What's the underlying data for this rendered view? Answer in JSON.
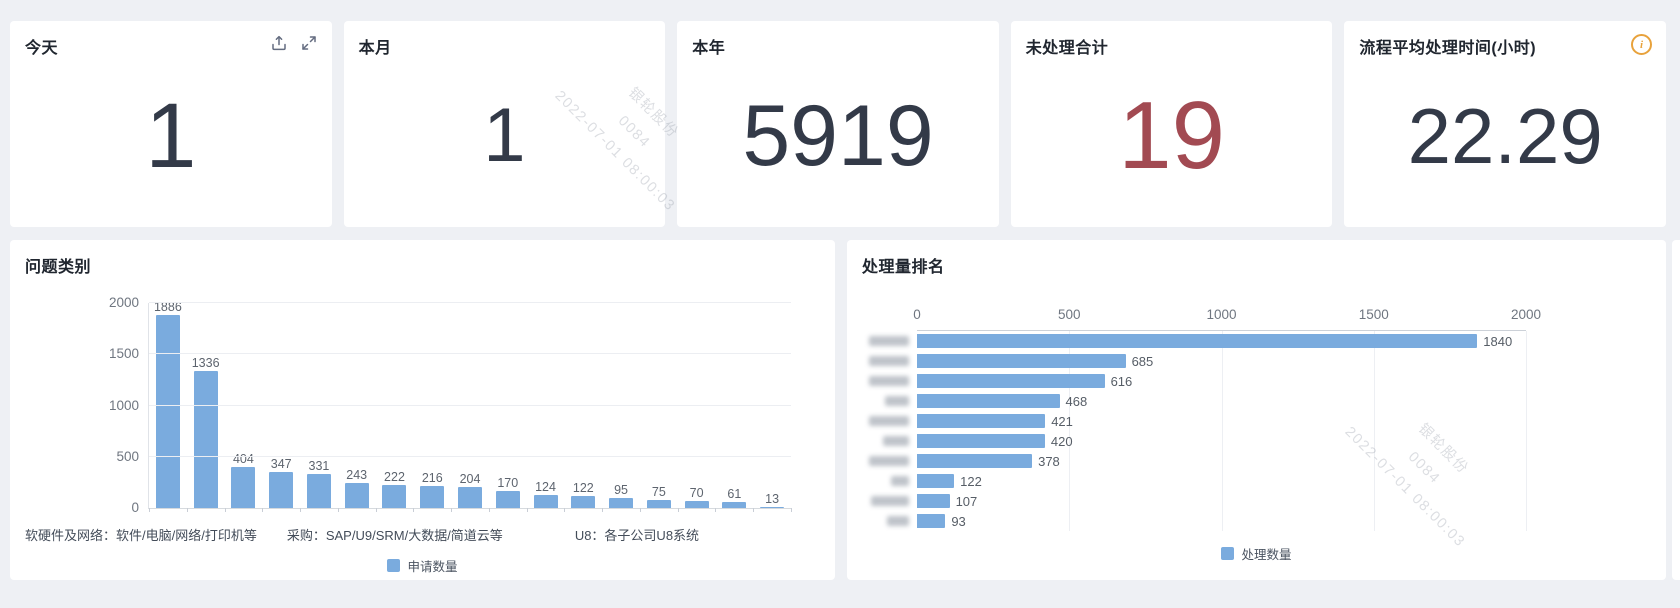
{
  "colors": {
    "bar_blue": "#7aabde",
    "alert_red": "#a24a52",
    "info_orange": "#e8a23c",
    "page_background": "#eef0f4"
  },
  "icons": {
    "share-icon": "tray-with-up-arrow",
    "fullscreen-icon": "four-corner-expand-arrows",
    "info-icon": "circled-i"
  },
  "watermark": {
    "company": "银轮股份",
    "code": "0084",
    "datetime": "2022-07-01 08:00:03"
  },
  "stat_cards": [
    {
      "title": "今天",
      "value": "1"
    },
    {
      "title": "本月",
      "value": "1"
    },
    {
      "title": "本年",
      "value": "5919"
    },
    {
      "title": "未处理合计",
      "value": "19",
      "value_color": "#a24a52"
    },
    {
      "title": "流程平均处理时间(小时)",
      "value": "22.29",
      "has_info_icon": true
    }
  ],
  "chart_data": [
    {
      "type": "bar",
      "orientation": "vertical",
      "title": "问题类别",
      "values": [
        1886,
        1336,
        404,
        347,
        331,
        243,
        222,
        216,
        204,
        170,
        124,
        122,
        95,
        75,
        70,
        61,
        13
      ],
      "categories_visible": false,
      "ylim": [
        0,
        2000
      ],
      "yticks": [
        0,
        500,
        1000,
        1500,
        2000
      ],
      "grid": true,
      "legend": "申请数量",
      "legend_position": "bottom-center",
      "note_segments": [
        "软硬件及网络：软件/电脑/网络/打印机等",
        "采购：SAP/U9/SRM/大数据/简道云等",
        "U8：各子公司U8系统"
      ]
    },
    {
      "type": "bar",
      "orientation": "horizontal",
      "title": "处理量排名",
      "values": [
        1840,
        685,
        616,
        468,
        421,
        420,
        378,
        122,
        107,
        93
      ],
      "category_labels": "blurred-illegible",
      "xlim": [
        0,
        2000
      ],
      "xticks": [
        0,
        500,
        1000,
        1500,
        2000
      ],
      "axis_position": "top",
      "grid": true,
      "legend": "处理数量",
      "legend_position": "bottom-center"
    }
  ]
}
